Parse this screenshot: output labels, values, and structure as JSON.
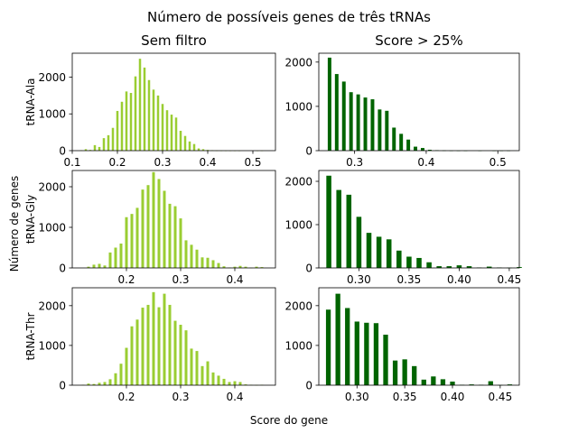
{
  "figure": {
    "title": "Número de possíveis genes de três tRNAs",
    "xlabel": "Score do gene",
    "ylabel": "Número de genes",
    "colors": {
      "unfiltered": "#9acd32",
      "filtered": "#006400"
    }
  },
  "chart_data": [
    {
      "type": "bar",
      "panel": "top-left",
      "title": "Sem filtro",
      "ylabel": "tRNA-Ala",
      "color": "#9acd32",
      "xlim": [
        0.1,
        0.55
      ],
      "ylim": [
        0,
        2650
      ],
      "xticks": [
        "0.1",
        "0.2",
        "0.3",
        "0.4",
        "0.5"
      ],
      "yticks": [
        "0",
        "1000",
        "2000"
      ],
      "x": [
        0.12,
        0.13,
        0.14,
        0.15,
        0.16,
        0.17,
        0.18,
        0.19,
        0.2,
        0.21,
        0.22,
        0.23,
        0.24,
        0.25,
        0.26,
        0.27,
        0.28,
        0.29,
        0.3,
        0.31,
        0.32,
        0.33,
        0.34,
        0.35,
        0.36,
        0.37,
        0.38,
        0.39,
        0.4,
        0.41,
        0.42,
        0.43,
        0.44,
        0.45,
        0.46,
        0.47,
        0.48,
        0.49,
        0.5,
        0.51,
        0.52
      ],
      "values": [
        10,
        40,
        20,
        150,
        100,
        340,
        420,
        620,
        1080,
        1330,
        1610,
        1570,
        2020,
        2500,
        2260,
        1920,
        1660,
        1500,
        1270,
        1100,
        980,
        900,
        540,
        400,
        250,
        180,
        60,
        40,
        20,
        10,
        5,
        3,
        2,
        1,
        1,
        1,
        0,
        0,
        0,
        1,
        2
      ]
    },
    {
      "type": "bar",
      "panel": "top-right",
      "title": "Score > 25%",
      "color": "#006400",
      "xlim": [
        0.25,
        0.53
      ],
      "ylim": [
        0,
        2200
      ],
      "xticks": [
        "0.3",
        "0.4",
        "0.5"
      ],
      "yticks": [
        "0",
        "1000",
        "2000"
      ],
      "x": [
        0.265,
        0.275,
        0.285,
        0.295,
        0.305,
        0.315,
        0.325,
        0.335,
        0.345,
        0.355,
        0.365,
        0.375,
        0.385,
        0.395,
        0.405,
        0.415,
        0.425,
        0.435,
        0.445,
        0.455,
        0.465,
        0.475,
        0.485,
        0.495,
        0.505,
        0.515
      ],
      "values": [
        2100,
        1730,
        1560,
        1320,
        1270,
        1200,
        1160,
        930,
        900,
        520,
        380,
        250,
        90,
        60,
        20,
        10,
        5,
        2,
        1,
        1,
        0,
        1,
        0,
        1,
        1,
        2
      ]
    },
    {
      "type": "bar",
      "panel": "middle-left",
      "ylabel": "tRNA-Gly",
      "color": "#9acd32",
      "xlim": [
        0.1,
        0.475
      ],
      "ylim": [
        0,
        2400
      ],
      "xticks": [
        "0.2",
        "0.3",
        "0.4"
      ],
      "yticks": [
        "0",
        "1000",
        "2000"
      ],
      "x": [
        0.13,
        0.14,
        0.15,
        0.16,
        0.17,
        0.18,
        0.19,
        0.2,
        0.21,
        0.22,
        0.23,
        0.24,
        0.25,
        0.26,
        0.27,
        0.28,
        0.29,
        0.3,
        0.31,
        0.32,
        0.33,
        0.34,
        0.35,
        0.36,
        0.37,
        0.38,
        0.39,
        0.4,
        0.41,
        0.42,
        0.43,
        0.44,
        0.45
      ],
      "values": [
        30,
        80,
        100,
        60,
        380,
        500,
        600,
        1250,
        1330,
        1480,
        1930,
        2040,
        2360,
        2190,
        1900,
        1580,
        1520,
        1220,
        680,
        570,
        450,
        260,
        250,
        190,
        120,
        40,
        10,
        30,
        50,
        30,
        5,
        30,
        20
      ]
    },
    {
      "type": "bar",
      "panel": "middle-right",
      "color": "#006400",
      "xlim": [
        0.26,
        0.46
      ],
      "ylim": [
        0,
        2250
      ],
      "xticks": [
        "0.30",
        "0.35",
        "0.40",
        "0.45"
      ],
      "yticks": [
        "0",
        "1000",
        "2000"
      ],
      "x": [
        0.27,
        0.28,
        0.29,
        0.3,
        0.31,
        0.32,
        0.33,
        0.34,
        0.35,
        0.36,
        0.37,
        0.38,
        0.39,
        0.4,
        0.41,
        0.42,
        0.43,
        0.44,
        0.45,
        0.46
      ],
      "values": [
        2130,
        1800,
        1690,
        1180,
        810,
        720,
        660,
        400,
        260,
        230,
        130,
        40,
        40,
        60,
        40,
        10,
        30,
        10,
        5,
        20
      ]
    },
    {
      "type": "bar",
      "panel": "bottom-left",
      "ylabel": "tRNA-Thr",
      "color": "#9acd32",
      "xlim": [
        0.1,
        0.475
      ],
      "ylim": [
        0,
        2450
      ],
      "xticks": [
        "0.2",
        "0.3",
        "0.4"
      ],
      "yticks": [
        "0",
        "1000",
        "2000"
      ],
      "x": [
        0.12,
        0.13,
        0.14,
        0.15,
        0.16,
        0.17,
        0.18,
        0.19,
        0.2,
        0.21,
        0.22,
        0.23,
        0.24,
        0.25,
        0.26,
        0.27,
        0.28,
        0.29,
        0.3,
        0.31,
        0.32,
        0.33,
        0.34,
        0.35,
        0.36,
        0.37,
        0.38,
        0.39,
        0.4,
        0.41,
        0.42,
        0.43,
        0.44,
        0.45
      ],
      "values": [
        10,
        40,
        30,
        60,
        80,
        150,
        300,
        540,
        940,
        1480,
        1650,
        1950,
        2020,
        2340,
        1960,
        2300,
        2020,
        1620,
        1520,
        1380,
        920,
        860,
        480,
        600,
        320,
        240,
        160,
        80,
        100,
        80,
        20,
        10,
        5,
        10
      ]
    },
    {
      "type": "bar",
      "panel": "bottom-right",
      "color": "#006400",
      "xlim": [
        0.26,
        0.47
      ],
      "ylim": [
        0,
        2450
      ],
      "xticks": [
        "0.30",
        "0.35",
        "0.40",
        "0.45"
      ],
      "yticks": [
        "0",
        "1000",
        "2000"
      ],
      "x": [
        0.27,
        0.28,
        0.29,
        0.3,
        0.31,
        0.32,
        0.33,
        0.34,
        0.35,
        0.36,
        0.37,
        0.38,
        0.39,
        0.4,
        0.41,
        0.42,
        0.43,
        0.44,
        0.45,
        0.46
      ],
      "values": [
        1900,
        2300,
        1940,
        1600,
        1570,
        1560,
        1270,
        620,
        650,
        480,
        140,
        220,
        150,
        90,
        10,
        20,
        10,
        100,
        5,
        20
      ]
    }
  ]
}
